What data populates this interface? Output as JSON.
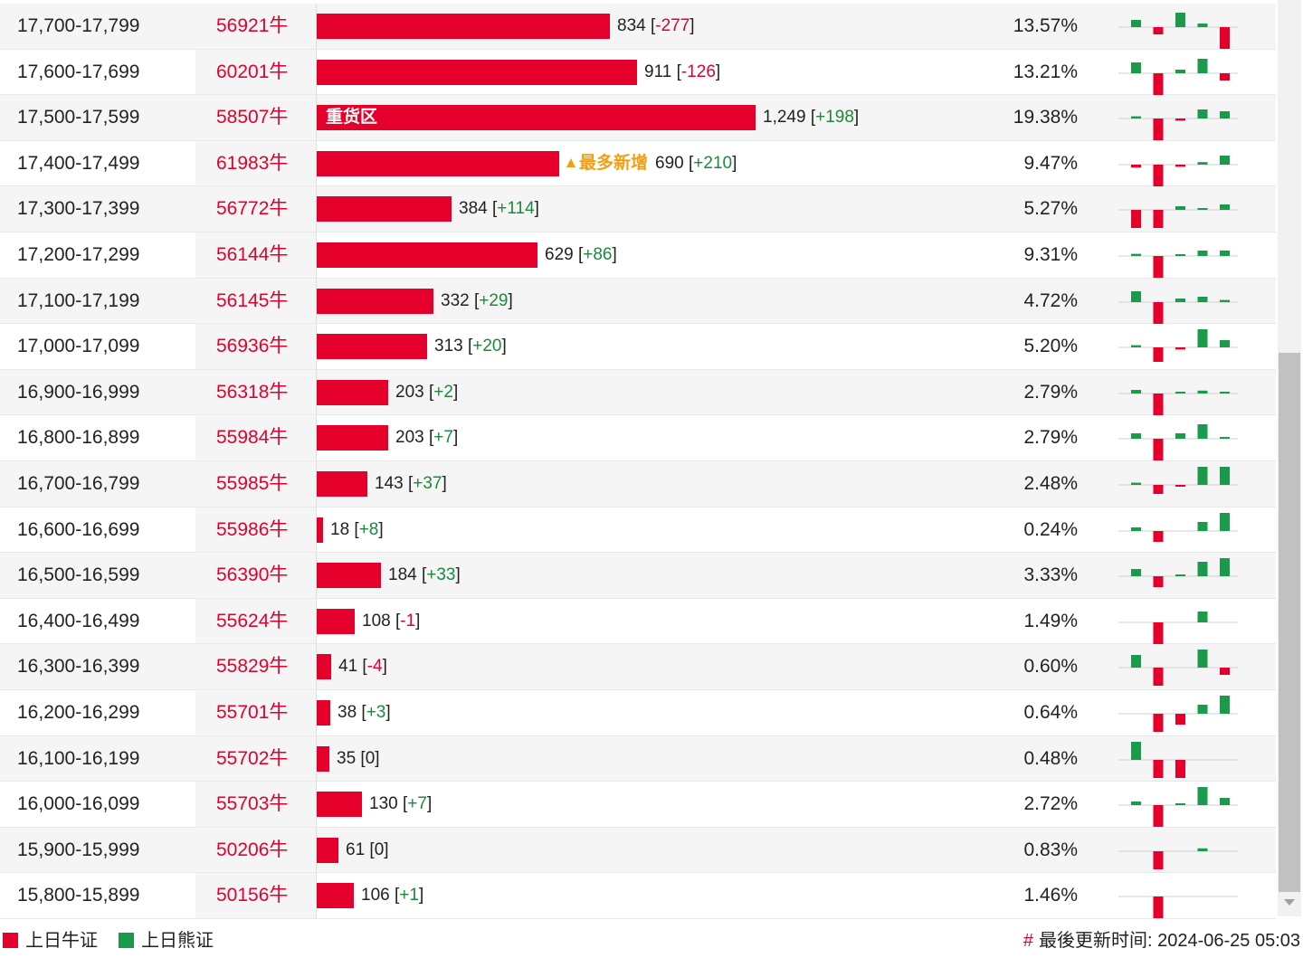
{
  "colors": {
    "bull": "#e4002b",
    "bear": "#1b9a4b",
    "badge": "#f0a017"
  },
  "rows": [
    {
      "range": "17,700-17,799",
      "code": "56921牛",
      "count": "834",
      "delta": "-277",
      "pct": "13.57%",
      "value": 834,
      "spark": [
        2,
        -2,
        4,
        1,
        -6
      ]
    },
    {
      "range": "17,600-17,699",
      "code": "60201牛",
      "count": "911",
      "delta": "-126",
      "pct": "13.21%",
      "value": 911,
      "spark": [
        3,
        -6,
        1,
        4,
        -2
      ]
    },
    {
      "range": "17,500-17,599",
      "code": "58507牛",
      "count": "1,249",
      "delta": "+198",
      "pct": "19.38%",
      "value": 1249,
      "spark": [
        0.6,
        -6,
        -0.6,
        2.5,
        2
      ],
      "bar_label": "重货区"
    },
    {
      "range": "17,400-17,499",
      "code": "61983牛",
      "count": "690",
      "delta": "+210",
      "pct": "9.47%",
      "value": 690,
      "spark": [
        -0.8,
        -6,
        -0.6,
        0.7,
        2.5
      ],
      "badge": "最多新增"
    },
    {
      "range": "17,300-17,399",
      "code": "56772牛",
      "count": "384",
      "delta": "+114",
      "pct": "5.27%",
      "value": 384,
      "spark": [
        -5,
        -5,
        1,
        0.5,
        1.5
      ]
    },
    {
      "range": "17,200-17,299",
      "code": "56144牛",
      "count": "629",
      "delta": "+86",
      "pct": "9.31%",
      "value": 629,
      "spark": [
        0.6,
        -6,
        0.3,
        1.5,
        1.5
      ]
    },
    {
      "range": "17,100-17,199",
      "code": "56145牛",
      "count": "332",
      "delta": "+29",
      "pct": "4.72%",
      "value": 332,
      "spark": [
        3,
        -6,
        1,
        1.5,
        0.6
      ]
    },
    {
      "range": "17,000-17,099",
      "code": "56936牛",
      "count": "313",
      "delta": "+20",
      "pct": "5.20%",
      "value": 313,
      "spark": [
        0.6,
        -4,
        -0.6,
        5,
        2
      ]
    },
    {
      "range": "16,900-16,999",
      "code": "56318牛",
      "count": "203",
      "delta": "+2",
      "pct": "2.79%",
      "value": 203,
      "spark": [
        1,
        -6,
        0.5,
        0.8,
        0.5
      ]
    },
    {
      "range": "16,800-16,899",
      "code": "55984牛",
      "count": "203",
      "delta": "+7",
      "pct": "2.79%",
      "value": 203,
      "spark": [
        1.5,
        -6,
        1.5,
        4,
        0.4
      ]
    },
    {
      "range": "16,700-16,799",
      "code": "55985牛",
      "count": "143",
      "delta": "+37",
      "pct": "2.48%",
      "value": 143,
      "spark": [
        0.6,
        -2.5,
        -0.5,
        5,
        5
      ]
    },
    {
      "range": "16,600-16,699",
      "code": "55986牛",
      "count": "18",
      "delta": "+8",
      "pct": "0.24%",
      "value": 18,
      "spark": [
        1,
        -3,
        0,
        2.5,
        5
      ]
    },
    {
      "range": "16,500-16,599",
      "code": "56390牛",
      "count": "184",
      "delta": "+33",
      "pct": "3.33%",
      "value": 184,
      "spark": [
        2,
        -3,
        0.5,
        4,
        5
      ]
    },
    {
      "range": "16,400-16,499",
      "code": "55624牛",
      "count": "108",
      "delta": "-1",
      "pct": "1.49%",
      "value": 108,
      "spark": [
        0,
        -6,
        0,
        3,
        0
      ]
    },
    {
      "range": "16,300-16,399",
      "code": "55829牛",
      "count": "41",
      "delta": "-4",
      "pct": "0.60%",
      "value": 41,
      "spark": [
        3.5,
        -5,
        0,
        5,
        -2
      ]
    },
    {
      "range": "16,200-16,299",
      "code": "55701牛",
      "count": "38",
      "delta": "+3",
      "pct": "0.64%",
      "value": 38,
      "spark": [
        0,
        -5,
        -3,
        2.5,
        5
      ]
    },
    {
      "range": "16,100-16,199",
      "code": "55702牛",
      "count": "35",
      "delta": "0",
      "pct": "0.48%",
      "value": 35,
      "spark": [
        5,
        -5,
        -5,
        0,
        0
      ]
    },
    {
      "range": "16,000-16,099",
      "code": "55703牛",
      "count": "130",
      "delta": "+7",
      "pct": "2.72%",
      "value": 130,
      "spark": [
        1,
        -6,
        0.3,
        5,
        2
      ]
    },
    {
      "range": "15,900-15,999",
      "code": "50206牛",
      "count": "61",
      "delta": "0",
      "pct": "0.83%",
      "value": 61,
      "spark": [
        0,
        -5,
        0,
        0.8,
        0
      ]
    },
    {
      "range": "15,800-15,899",
      "code": "50156牛",
      "count": "106",
      "delta": "+1",
      "pct": "1.46%",
      "value": 106,
      "spark": [
        0,
        -6,
        0,
        0,
        0
      ]
    }
  ],
  "footer": {
    "legend_bull": "上日牛证",
    "legend_bear": "上日熊证",
    "hash": "#",
    "update_label": "最後更新时间:",
    "update_time": "2024-06-25 05:03"
  }
}
